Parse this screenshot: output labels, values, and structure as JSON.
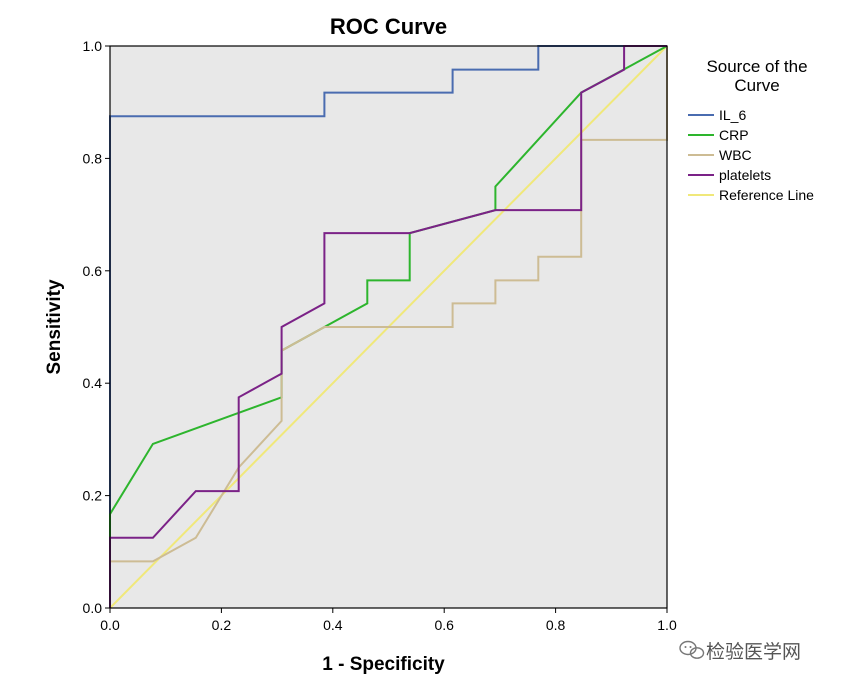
{
  "chart_data": {
    "type": "line",
    "title": "ROC Curve",
    "xlabel": "1 - Specificity",
    "ylabel": "Sensitivity",
    "xlim": [
      0.0,
      1.0
    ],
    "ylim": [
      0.0,
      1.0
    ],
    "x_ticks": [
      "0.0",
      "0.2",
      "0.4",
      "0.6",
      "0.8",
      "1.0"
    ],
    "y_ticks": [
      "0.0",
      "0.2",
      "0.4",
      "0.6",
      "0.8",
      "1.0"
    ],
    "grid": false,
    "plot_background": "#e8e8e8",
    "legend": {
      "title": [
        "Source of the",
        "Curve"
      ],
      "placement": "right"
    },
    "series": [
      {
        "name": "IL_6",
        "color": "#4a6cb0",
        "points": [
          [
            0,
            0
          ],
          [
            0,
            0.875
          ],
          [
            0.385,
            0.875
          ],
          [
            0.385,
            0.917
          ],
          [
            0.615,
            0.917
          ],
          [
            0.615,
            0.958
          ],
          [
            0.769,
            0.958
          ],
          [
            0.769,
            1.0
          ],
          [
            1.0,
            1.0
          ]
        ]
      },
      {
        "name": "CRP",
        "color": "#2db52d",
        "points": [
          [
            0,
            0
          ],
          [
            0,
            0.167
          ],
          [
            0.077,
            0.292
          ],
          [
            0.308,
            0.375
          ],
          [
            0.308,
            0.458
          ],
          [
            0.385,
            0.5
          ],
          [
            0.462,
            0.542
          ],
          [
            0.462,
            0.583
          ],
          [
            0.538,
            0.583
          ],
          [
            0.538,
            0.667
          ],
          [
            0.692,
            0.708
          ],
          [
            0.692,
            0.75
          ],
          [
            0.846,
            0.917
          ],
          [
            1.0,
            1.0
          ]
        ]
      },
      {
        "name": "WBC",
        "color": "#cdbc94",
        "points": [
          [
            0,
            0
          ],
          [
            0,
            0.083
          ],
          [
            0.077,
            0.083
          ],
          [
            0.154,
            0.125
          ],
          [
            0.231,
            0.25
          ],
          [
            0.308,
            0.333
          ],
          [
            0.308,
            0.458
          ],
          [
            0.385,
            0.5
          ],
          [
            0.615,
            0.5
          ],
          [
            0.615,
            0.542
          ],
          [
            0.692,
            0.542
          ],
          [
            0.692,
            0.583
          ],
          [
            0.769,
            0.583
          ],
          [
            0.769,
            0.625
          ],
          [
            0.846,
            0.625
          ],
          [
            0.846,
            0.833
          ],
          [
            1.0,
            0.833
          ],
          [
            1.0,
            1.0
          ]
        ]
      },
      {
        "name": "platelets",
        "color": "#7b2287",
        "points": [
          [
            0,
            0
          ],
          [
            0,
            0.125
          ],
          [
            0.077,
            0.125
          ],
          [
            0.154,
            0.208
          ],
          [
            0.231,
            0.208
          ],
          [
            0.231,
            0.375
          ],
          [
            0.308,
            0.417
          ],
          [
            0.308,
            0.5
          ],
          [
            0.385,
            0.542
          ],
          [
            0.385,
            0.667
          ],
          [
            0.538,
            0.667
          ],
          [
            0.692,
            0.708
          ],
          [
            0.846,
            0.708
          ],
          [
            0.846,
            0.917
          ],
          [
            0.923,
            0.958
          ],
          [
            0.923,
            1.0
          ],
          [
            1.0,
            1.0
          ]
        ]
      },
      {
        "name": "Reference Line",
        "color": "#f0e87a",
        "points": [
          [
            0,
            0
          ],
          [
            1,
            1
          ]
        ]
      }
    ]
  },
  "watermark": {
    "text": "检验医学网"
  }
}
